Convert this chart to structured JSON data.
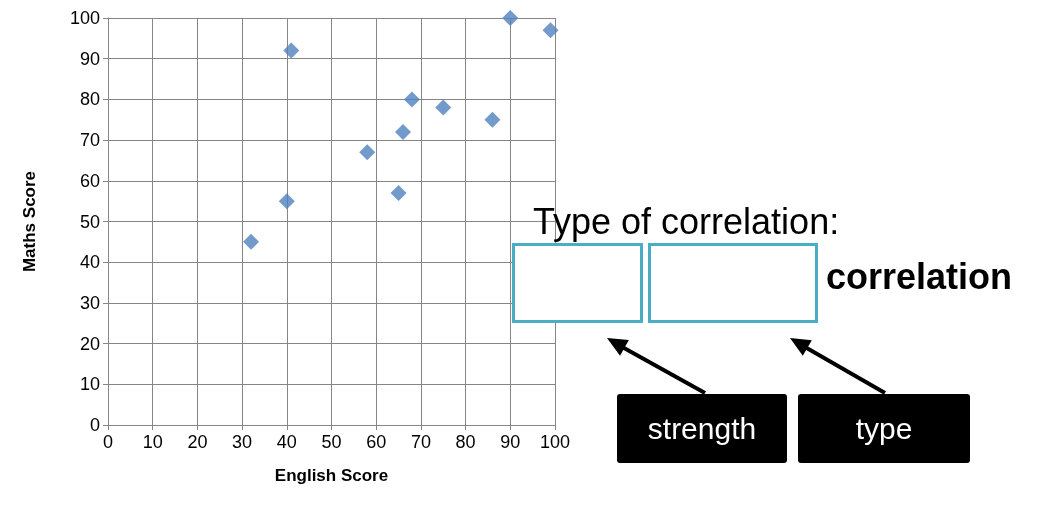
{
  "chart_data": {
    "type": "scatter",
    "xlabel": "English Score",
    "ylabel": "Maths Score",
    "x": [
      32,
      40,
      41,
      58,
      65,
      66,
      68,
      75,
      86,
      90,
      99
    ],
    "values": [
      45,
      55,
      92,
      67,
      57,
      72,
      80,
      78,
      75,
      100,
      97
    ],
    "color": "#4f81bd",
    "marker": "diamond",
    "grid": true,
    "xlim": [
      0,
      100
    ],
    "xticks": [
      0,
      10,
      20,
      30,
      40,
      50,
      60,
      70,
      80,
      90,
      100
    ],
    "ylim": [
      0,
      100
    ],
    "yticks": [
      0,
      10,
      20,
      30,
      40,
      50,
      60,
      70,
      80,
      90,
      100
    ],
    "annotations": [
      "Type of correlation:",
      "correlation",
      "strength",
      "type"
    ]
  }
}
